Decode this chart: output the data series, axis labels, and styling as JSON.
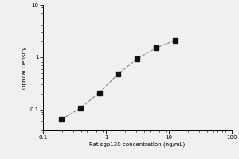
{
  "x": [
    0.195,
    0.39,
    0.781,
    1.563,
    3.125,
    6.25,
    12.5
  ],
  "y": [
    0.065,
    0.105,
    0.21,
    0.48,
    0.93,
    1.5,
    2.1
  ],
  "xlabel": "Rat sgp130 concentration (ng/mL)",
  "ylabel": "Optical Density",
  "xlim": [
    0.1,
    100
  ],
  "ylim": [
    0.04,
    10
  ],
  "marker": "s",
  "marker_color": "#111111",
  "line_color": "#888888",
  "line_style": "--",
  "marker_size": 4,
  "bg_color": "#f0f0f0",
  "plot_bg_color": "#f0f0f0"
}
